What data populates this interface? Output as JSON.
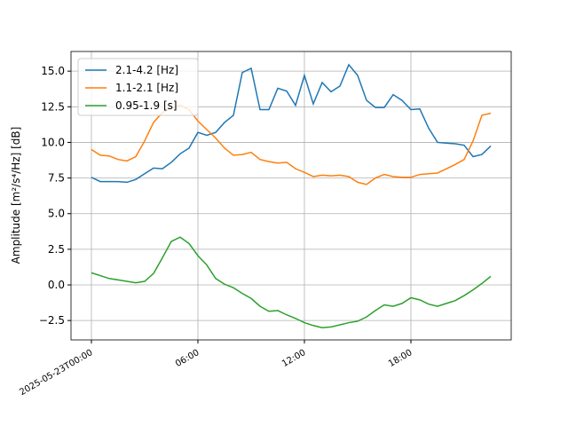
{
  "chart_data": {
    "type": "line",
    "ylabel": "Amplitude [m²/s⁴/Hz] [dB]",
    "x": [
      0,
      0.5,
      1,
      1.5,
      2,
      2.5,
      3,
      3.5,
      4,
      4.5,
      5,
      5.5,
      6,
      6.5,
      7,
      7.5,
      8,
      8.5,
      9,
      9.5,
      10,
      10.5,
      11,
      11.5,
      12,
      12.5,
      13,
      13.5,
      14,
      14.5,
      15,
      15.5,
      16,
      16.5,
      17,
      17.5,
      18,
      18.5,
      19,
      19.5,
      20,
      20.5,
      21,
      21.5,
      22,
      22.5
    ],
    "series": [
      {
        "name": "2.1-4.2 [Hz]",
        "color": "#1f77b4",
        "values": [
          7.55,
          7.25,
          7.25,
          7.25,
          7.2,
          7.4,
          7.8,
          8.2,
          8.15,
          8.6,
          9.2,
          9.6,
          10.7,
          10.5,
          10.7,
          11.4,
          11.9,
          14.9,
          15.2,
          12.3,
          12.3,
          13.8,
          13.6,
          12.6,
          14.7,
          12.7,
          14.2,
          13.55,
          13.95,
          15.45,
          14.7,
          12.95,
          12.45,
          12.45,
          13.35,
          12.95,
          12.3,
          12.35,
          11.0,
          10.0,
          9.95,
          9.9,
          9.8,
          9.0,
          9.15,
          9.75
        ]
      },
      {
        "name": "1.1-2.1 [Hz]",
        "color": "#ff7f0e",
        "values": [
          9.5,
          9.1,
          9.05,
          8.8,
          8.7,
          9.0,
          10.1,
          11.4,
          12.1,
          12.4,
          12.6,
          12.3,
          11.5,
          10.9,
          10.3,
          9.6,
          9.1,
          9.15,
          9.3,
          8.8,
          8.65,
          8.55,
          8.6,
          8.15,
          7.9,
          7.6,
          7.7,
          7.65,
          7.7,
          7.6,
          7.2,
          7.05,
          7.5,
          7.75,
          7.6,
          7.55,
          7.55,
          7.75,
          7.8,
          7.85,
          8.15,
          8.45,
          8.8,
          10.1,
          11.9,
          12.05
        ]
      },
      {
        "name": "0.95-1.9 [s]",
        "color": "#2ca02c",
        "values": [
          0.85,
          0.65,
          0.45,
          0.35,
          0.25,
          0.15,
          0.25,
          0.8,
          1.9,
          3.05,
          3.35,
          2.9,
          2.05,
          1.4,
          0.45,
          0.05,
          -0.2,
          -0.6,
          -0.95,
          -1.5,
          -1.85,
          -1.8,
          -2.1,
          -2.35,
          -2.65,
          -2.85,
          -3.0,
          -2.95,
          -2.8,
          -2.65,
          -2.55,
          -2.25,
          -1.8,
          -1.4,
          -1.5,
          -1.3,
          -0.9,
          -1.05,
          -1.35,
          -1.5,
          -1.3,
          -1.1,
          -0.75,
          -0.35,
          0.1,
          0.6
        ]
      }
    ],
    "xlim": [
      -1.15,
      23.65
    ],
    "xticks": [
      {
        "value": 0,
        "label": "2025-05-23T00:00"
      },
      {
        "value": 6,
        "label": "06:00"
      },
      {
        "value": 12,
        "label": "12:00"
      },
      {
        "value": 18,
        "label": "18:00"
      }
    ],
    "ylim": [
      -3.86,
      16.38
    ],
    "yticks": [
      {
        "value": -2.5,
        "label": "−2.5"
      },
      {
        "value": 0,
        "label": "0.0"
      },
      2.5,
      {
        "value": 5,
        "label": "5.0"
      },
      7.5,
      {
        "value": 10,
        "label": "10.0"
      },
      12.5,
      {
        "value": 15,
        "label": "15.0"
      }
    ],
    "grid": true,
    "legend": "upper left"
  }
}
